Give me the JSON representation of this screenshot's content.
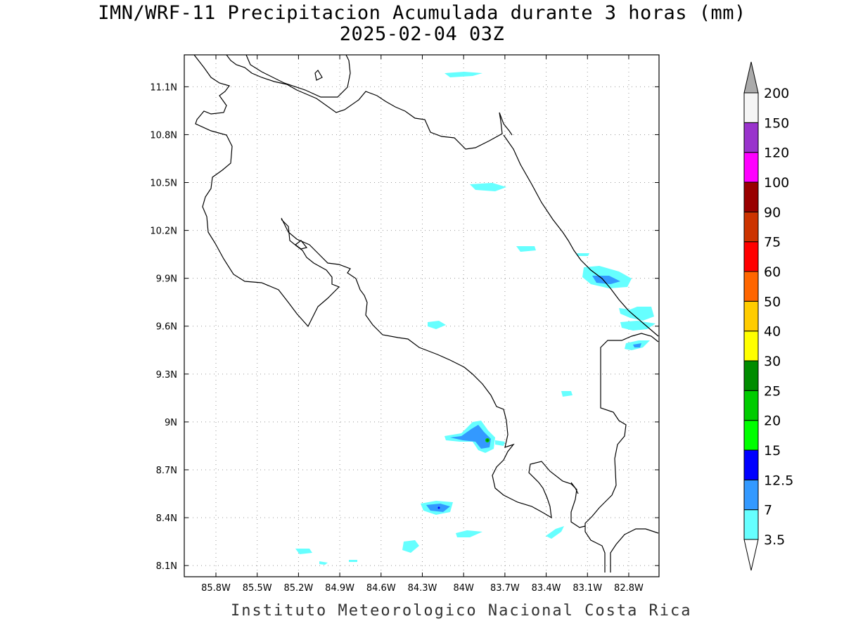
{
  "header": {
    "title": "IMN/WRF-11 Precipitacion Acumulada durante 3 horas (mm)",
    "subtitle": "2025-02-04 03Z"
  },
  "footer": {
    "credit": "Instituto Meteorologico Nacional Costa Rica"
  },
  "map": {
    "lon_range": [
      -86.03,
      -82.58
    ],
    "lat_range": [
      8.03,
      11.3
    ],
    "lon_ticks": [
      "85.8W",
      "85.5W",
      "85.2W",
      "84.9W",
      "84.6W",
      "84.3W",
      "84W",
      "83.7W",
      "83.4W",
      "83.1W",
      "82.8W"
    ],
    "lon_tick_values": [
      -85.8,
      -85.5,
      -85.2,
      -84.9,
      -84.6,
      -84.3,
      -84.0,
      -83.7,
      -83.4,
      -83.1,
      -82.8
    ],
    "lat_ticks": [
      "8.1N",
      "8.4N",
      "8.7N",
      "9N",
      "9.3N",
      "9.6N",
      "9.9N",
      "10.2N",
      "10.5N",
      "10.8N",
      "11.1N"
    ],
    "lat_tick_values": [
      8.1,
      8.4,
      8.7,
      9.0,
      9.3,
      9.6,
      9.9,
      10.2,
      10.5,
      10.8,
      11.1
    ],
    "grid": "dotted"
  },
  "colorbar": {
    "labels": [
      "3.5",
      "7",
      "12.5",
      "15",
      "20",
      "25",
      "30",
      "40",
      "50",
      "60",
      "75",
      "90",
      "100",
      "120",
      "150",
      "200"
    ],
    "colors": [
      "#66ffff",
      "#3399ff",
      "#0000ff",
      "#00ff00",
      "#00cc00",
      "#008c00",
      "#ffff00",
      "#ffcc00",
      "#ff6600",
      "#ff0000",
      "#cc3300",
      "#990000",
      "#ff00ff",
      "#9933cc",
      "#f5f5f5"
    ],
    "over_color": "#aaaaaa",
    "under_color": "#ffffff"
  },
  "precip_areas": [
    {
      "level": 0,
      "points": [
        [
          632,
          104
        ],
        [
          660,
          102
        ],
        [
          686,
          104
        ],
        [
          672,
          108
        ],
        [
          640,
          110
        ]
      ]
    },
    {
      "level": 0,
      "points": [
        [
          668,
          262
        ],
        [
          700,
          260
        ],
        [
          720,
          266
        ],
        [
          704,
          272
        ],
        [
          676,
          270
        ]
      ]
    },
    {
      "level": 0,
      "points": [
        [
          734,
          350
        ],
        [
          760,
          350
        ],
        [
          762,
          356
        ],
        [
          740,
          358
        ]
      ]
    },
    {
      "level": 0,
      "points": [
        [
          820,
          360
        ],
        [
          838,
          360
        ],
        [
          836,
          364
        ],
        [
          822,
          364
        ]
      ]
    },
    {
      "level": 0,
      "points": [
        [
          830,
          380
        ],
        [
          852,
          378
        ],
        [
          880,
          386
        ],
        [
          898,
          396
        ],
        [
          892,
          408
        ],
        [
          866,
          410
        ],
        [
          840,
          404
        ],
        [
          828,
          394
        ]
      ]
    },
    {
      "level": 1,
      "points": [
        [
          842,
          392
        ],
        [
          866,
          392
        ],
        [
          882,
          400
        ],
        [
          868,
          404
        ],
        [
          848,
          402
        ]
      ]
    },
    {
      "level": 0,
      "points": [
        [
          880,
          438
        ],
        [
          896,
          440
        ],
        [
          906,
          436
        ],
        [
          926,
          436
        ],
        [
          930,
          450
        ],
        [
          914,
          456
        ],
        [
          896,
          452
        ],
        [
          882,
          446
        ]
      ]
    },
    {
      "level": 0,
      "points": [
        [
          882,
          458
        ],
        [
          906,
          456
        ],
        [
          932,
          460
        ],
        [
          920,
          468
        ],
        [
          900,
          470
        ],
        [
          884,
          466
        ]
      ]
    },
    {
      "level": 0,
      "points": [
        [
          890,
          488
        ],
        [
          908,
          484
        ],
        [
          924,
          484
        ],
        [
          914,
          494
        ],
        [
          898,
          498
        ],
        [
          888,
          496
        ]
      ]
    },
    {
      "level": 1,
      "points": [
        [
          900,
          490
        ],
        [
          912,
          488
        ],
        [
          910,
          494
        ],
        [
          902,
          494
        ]
      ]
    },
    {
      "level": 0,
      "points": [
        [
          608,
          458
        ],
        [
          624,
          456
        ],
        [
          634,
          462
        ],
        [
          620,
          468
        ],
        [
          608,
          464
        ]
      ]
    },
    {
      "level": 0,
      "points": [
        [
          798,
          556
        ],
        [
          812,
          556
        ],
        [
          814,
          562
        ],
        [
          800,
          564
        ]
      ]
    },
    {
      "level": 0,
      "points": [
        [
          632,
          620
        ],
        [
          656,
          616
        ],
        [
          672,
          600
        ],
        [
          684,
          598
        ],
        [
          694,
          612
        ],
        [
          704,
          622
        ],
        [
          702,
          638
        ],
        [
          690,
          644
        ],
        [
          680,
          640
        ],
        [
          672,
          628
        ],
        [
          654,
          628
        ],
        [
          634,
          626
        ]
      ]
    },
    {
      "level": 1,
      "points": [
        [
          640,
          622
        ],
        [
          656,
          620
        ],
        [
          670,
          610
        ],
        [
          680,
          604
        ],
        [
          688,
          614
        ],
        [
          698,
          624
        ],
        [
          696,
          636
        ],
        [
          684,
          638
        ],
        [
          676,
          628
        ],
        [
          658,
          626
        ]
      ]
    },
    {
      "level": 0,
      "points": [
        [
          704,
          626
        ],
        [
          718,
          628
        ],
        [
          716,
          634
        ],
        [
          704,
          632
        ]
      ]
    },
    {
      "level": 0,
      "points": [
        [
          598,
          716
        ],
        [
          620,
          712
        ],
        [
          644,
          714
        ],
        [
          640,
          728
        ],
        [
          620,
          732
        ],
        [
          602,
          726
        ]
      ]
    },
    {
      "level": 1,
      "points": [
        [
          606,
          718
        ],
        [
          626,
          716
        ],
        [
          640,
          720
        ],
        [
          630,
          728
        ],
        [
          612,
          726
        ]
      ]
    },
    {
      "level": 0,
      "points": [
        [
          648,
          758
        ],
        [
          664,
          754
        ],
        [
          686,
          756
        ],
        [
          668,
          764
        ],
        [
          650,
          764
        ]
      ]
    },
    {
      "level": 0,
      "points": [
        [
          574,
          770
        ],
        [
          590,
          768
        ],
        [
          596,
          776
        ],
        [
          584,
          786
        ],
        [
          572,
          782
        ]
      ]
    },
    {
      "level": 0,
      "points": [
        [
          776,
          762
        ],
        [
          790,
          752
        ],
        [
          802,
          748
        ],
        [
          798,
          756
        ],
        [
          784,
          766
        ]
      ]
    },
    {
      "level": 0,
      "points": [
        [
          420,
          780
        ],
        [
          440,
          780
        ],
        [
          444,
          786
        ],
        [
          426,
          788
        ]
      ]
    },
    {
      "level": 0,
      "points": [
        [
          454,
          798
        ],
        [
          466,
          800
        ],
        [
          462,
          803
        ],
        [
          454,
          802
        ]
      ]
    },
    {
      "level": 0,
      "points": [
        [
          496,
          796
        ],
        [
          508,
          796
        ],
        [
          508,
          799
        ],
        [
          496,
          799
        ]
      ]
    }
  ]
}
